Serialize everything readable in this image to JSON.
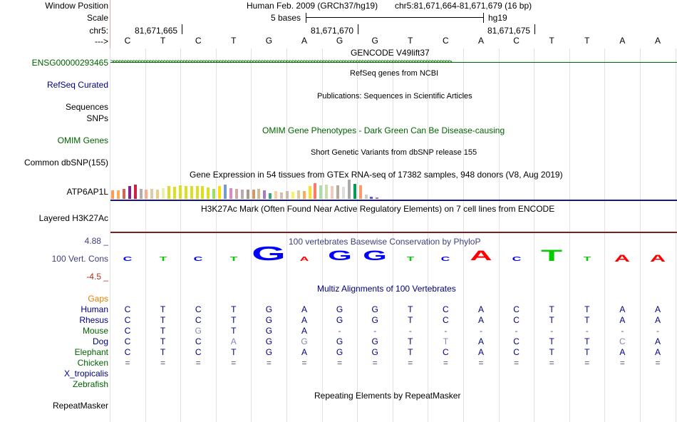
{
  "labels": {
    "window_position": "Window Position",
    "scale": "Scale",
    "chr": "chr5:",
    "arrow": "--->",
    "gene": "ENSG00000293465",
    "refseq": "RefSeq Curated",
    "sequences": "Sequences",
    "snps": "SNPs",
    "omim": "OMIM Genes",
    "common_dbsnp": "Common dbSNP(155)",
    "gene_exp": "ATP6AP1L",
    "layered": "Layered H3K27Ac",
    "cons_max": "4.88 _",
    "cons_name": "100 Vert. Cons",
    "cons_min": "-4.5 _",
    "gaps": "Gaps"
  },
  "header": {
    "assembly": "Human Feb. 2009 (GRCh37/hg19)",
    "position": "chr5:81,671,664-81,671,679 (16 bp)",
    "scale_text": "5 bases",
    "scale_db": "hg19",
    "coords": [
      "81,671,665",
      "81,671,670",
      "81,671,675"
    ]
  },
  "bases": [
    "C",
    "T",
    "C",
    "T",
    "G",
    "A",
    "G",
    "G",
    "T",
    "C",
    "A",
    "C",
    "T",
    "T",
    "A",
    "A"
  ],
  "titles": {
    "gencode": "GENCODE V49lift37",
    "refseq": "RefSeq genes from NCBI",
    "publications": "Publications: Sequences in Scientific Articles",
    "omim": "OMIM Gene Phenotypes - Dark Green Can Be Disease-causing",
    "dbsnp": "Short Genetic Variants from dbSNP release 155",
    "gtex": "Gene Expression in 54 tissues from GTEx RNA-seq of 17382 samples, 948 donors (V8, Aug 2019)",
    "h3k27ac": "H3K27Ac Mark (Often Found Near Active Regulatory Elements) on 7 cell lines from ENCODE",
    "phylop": "100 vertebrates Basewise Conservation by PhyloP",
    "multiz": "Multiz Alignments of 100 Vertebrates",
    "repeats": "Repeating Elements by RepeatMasker"
  },
  "gene_arrows": ">>>>>>>>>>>>>>>>>>>>>>>>>>>>>>>>>>>>>>>>>>>>>>>>>>>>>>>>>>>>>>>>>>>>>>>>>>>>>>>>>>>>>>>>>>>>>>>>>>>>>>>>>>>>>>>>>>>>>>>>>>",
  "repeat_label": "RepeatMasker",
  "species": [
    {
      "name": "Human",
      "color": "#000080",
      "seq": [
        "C",
        "T",
        "C",
        "T",
        "G",
        "A",
        "G",
        "G",
        "T",
        "C",
        "A",
        "C",
        "T",
        "T",
        "A",
        "A"
      ]
    },
    {
      "name": "Rhesus",
      "color": "#000080",
      "seq": [
        "C",
        "T",
        "C",
        "T",
        "G",
        "A",
        "G",
        "G",
        "T",
        "C",
        "A",
        "C",
        "T",
        "T",
        "A",
        "A"
      ]
    },
    {
      "name": "Mouse",
      "color": "#006400",
      "seq": [
        "C",
        "T",
        "G",
        "T",
        "G",
        "A",
        "-",
        "-",
        "-",
        "-",
        "-",
        "-",
        "-",
        "-",
        "-",
        "-"
      ]
    },
    {
      "name": "Dog",
      "color": "#000080",
      "seq": [
        "C",
        "T",
        "C",
        "A",
        "G",
        "G",
        "G",
        "G",
        "T",
        "T",
        "A",
        "C",
        "T",
        "T",
        "C",
        "A"
      ]
    },
    {
      "name": "Elephant",
      "color": "#006400",
      "seq": [
        "C",
        "T",
        "C",
        "T",
        "G",
        "A",
        "G",
        "G",
        "T",
        "C",
        "A",
        "C",
        "T",
        "T",
        "A",
        "A"
      ]
    },
    {
      "name": "Chicken",
      "color": "#006400",
      "seq": [
        "=",
        "=",
        "=",
        "=",
        "=",
        "=",
        "=",
        "=",
        "=",
        "=",
        "=",
        "=",
        "=",
        "=",
        "=",
        "="
      ]
    },
    {
      "name": "X_tropicalis",
      "color": "#000080",
      "seq": []
    },
    {
      "name": "Zebrafish",
      "color": "#006400",
      "seq": []
    }
  ],
  "colors": {
    "label_blue": "#000080",
    "label_green": "#006400",
    "gaps": "#e08000",
    "cons_max": "#40407e",
    "cons_min": "#b03020",
    "phylop_title": "#404080"
  }
}
